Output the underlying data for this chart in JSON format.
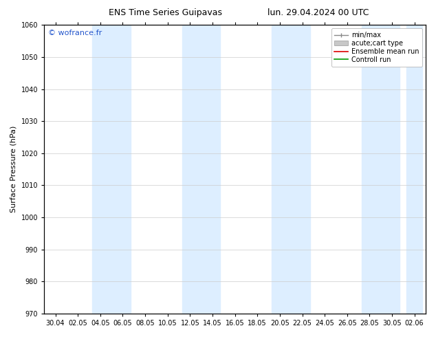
{
  "title_left": "ENS Time Series Guipavas",
  "title_right": "lun. 29.04.2024 00 UTC",
  "ylabel": "Surface Pressure (hPa)",
  "ylim": [
    970,
    1060
  ],
  "yticks": [
    970,
    980,
    990,
    1000,
    1010,
    1020,
    1030,
    1040,
    1050,
    1060
  ],
  "xtick_labels": [
    "30.04",
    "02.05",
    "04.05",
    "06.05",
    "08.05",
    "10.05",
    "12.05",
    "14.05",
    "16.05",
    "18.05",
    "20.05",
    "22.05",
    "24.05",
    "26.05",
    "28.05",
    "30.05",
    "02.06"
  ],
  "background_color": "#ffffff",
  "plot_bg_color": "#ffffff",
  "band_color": "#ddeeff",
  "band_indices": [
    2,
    3,
    6,
    7,
    10,
    11,
    14,
    15,
    16
  ],
  "watermark": "© wofrance.fr",
  "watermark_color": "#2255cc",
  "legend_labels": [
    "min/max",
    "acute;cart type",
    "Ensemble mean run",
    "Controll run"
  ],
  "title_fontsize": 9,
  "ylabel_fontsize": 8,
  "tick_fontsize": 7,
  "legend_fontsize": 7
}
